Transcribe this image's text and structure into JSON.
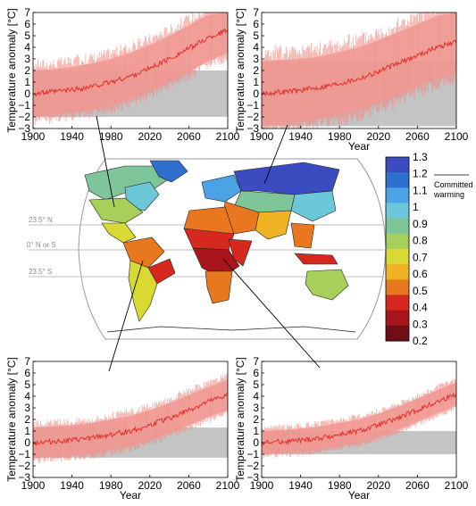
{
  "chart_data": [
    {
      "type": "line",
      "position": "top-left",
      "xlabel": "",
      "ylabel": "Temperature anomaly [°C]",
      "xlim": [
        1900,
        2100
      ],
      "ylim": [
        -3,
        7
      ],
      "x_ticks": [
        "1900",
        "1940",
        "1980",
        "2020",
        "2060",
        "2100"
      ],
      "y_ticks": [
        "−3",
        "−2",
        "−1",
        "0",
        "1",
        "2",
        "3",
        "4",
        "5",
        "6",
        "7"
      ],
      "committed_band": [
        -2.0,
        2.0
      ],
      "x": [
        1900,
        1920,
        1940,
        1960,
        1980,
        2000,
        2020,
        2040,
        2060,
        2080,
        2100
      ],
      "mean": [
        0.0,
        0.15,
        0.35,
        0.6,
        1.0,
        1.5,
        2.2,
        3.0,
        3.9,
        4.8,
        5.5
      ],
      "spread_low": [
        -2.0,
        -1.8,
        -1.6,
        -1.4,
        -1.0,
        -0.5,
        0.2,
        1.0,
        1.9,
        2.8,
        3.5
      ],
      "spread_high": [
        2.0,
        2.1,
        2.3,
        2.6,
        3.0,
        3.5,
        4.2,
        5.0,
        5.9,
        6.8,
        7.0
      ]
    },
    {
      "type": "line",
      "position": "top-right",
      "xlabel": "Year",
      "ylabel": "Temperature anomaly [°C]",
      "xlim": [
        1900,
        2100
      ],
      "ylim": [
        -3,
        7
      ],
      "x_ticks": [
        "1900",
        "1940",
        "1980",
        "2020",
        "2060",
        "2100"
      ],
      "y_ticks": [
        "−3",
        "−2",
        "−1",
        "0",
        "1",
        "2",
        "3",
        "4",
        "5",
        "6",
        "7"
      ],
      "committed_band": [
        -2.8,
        2.8
      ],
      "x": [
        1900,
        1920,
        1940,
        1960,
        1980,
        2000,
        2020,
        2040,
        2060,
        2080,
        2100
      ],
      "mean": [
        0.0,
        0.15,
        0.3,
        0.55,
        0.9,
        1.3,
        1.9,
        2.6,
        3.3,
        4.0,
        4.5
      ],
      "spread_low": [
        -2.8,
        -2.6,
        -2.4,
        -2.1,
        -1.8,
        -1.4,
        -0.8,
        -0.1,
        0.6,
        1.3,
        1.8
      ],
      "spread_high": [
        2.8,
        2.9,
        3.0,
        3.2,
        3.6,
        4.0,
        4.6,
        5.3,
        6.0,
        6.7,
        7.0
      ]
    },
    {
      "type": "line",
      "position": "bottom-left",
      "xlabel": "Year",
      "ylabel": "Temperature anomaly [°C]",
      "xlim": [
        1900,
        2100
      ],
      "ylim": [
        -3,
        7
      ],
      "x_ticks": [
        "1900",
        "1940",
        "1980",
        "2020",
        "2060",
        "2100"
      ],
      "y_ticks": [
        "−3",
        "−2",
        "−1",
        "0",
        "1",
        "2",
        "3",
        "4",
        "5",
        "6",
        "7"
      ],
      "committed_band": [
        -1.3,
        1.3
      ],
      "x": [
        1900,
        1920,
        1940,
        1960,
        1980,
        2000,
        2020,
        2040,
        2060,
        2080,
        2100
      ],
      "mean": [
        0.0,
        0.1,
        0.2,
        0.4,
        0.7,
        1.0,
        1.5,
        2.1,
        2.8,
        3.5,
        4.1
      ],
      "spread_low": [
        -1.3,
        -1.2,
        -1.1,
        -0.9,
        -0.6,
        -0.3,
        0.2,
        0.8,
        1.5,
        2.2,
        2.8
      ],
      "spread_high": [
        1.3,
        1.4,
        1.5,
        1.7,
        2.0,
        2.3,
        2.8,
        3.4,
        4.1,
        4.8,
        5.4
      ]
    },
    {
      "type": "line",
      "position": "bottom-right",
      "xlabel": "Year",
      "ylabel": "Temperature anomaly [°C]",
      "xlim": [
        1900,
        2100
      ],
      "ylim": [
        -3,
        7
      ],
      "x_ticks": [
        "1900",
        "1940",
        "1980",
        "2020",
        "2060",
        "2100"
      ],
      "y_ticks": [
        "−3",
        "−2",
        "−1",
        "0",
        "1",
        "2",
        "3",
        "4",
        "5",
        "6",
        "7"
      ],
      "committed_band": [
        -1.0,
        1.0
      ],
      "x": [
        1900,
        1920,
        1940,
        1960,
        1980,
        2000,
        2020,
        2040,
        2060,
        2080,
        2100
      ],
      "mean": [
        0.0,
        0.1,
        0.2,
        0.4,
        0.7,
        1.0,
        1.5,
        2.1,
        2.8,
        3.5,
        4.2
      ],
      "spread_low": [
        -1.0,
        -0.9,
        -0.8,
        -0.6,
        -0.3,
        0.0,
        0.5,
        1.1,
        1.8,
        2.5,
        3.2
      ],
      "spread_high": [
        1.0,
        1.1,
        1.2,
        1.4,
        1.7,
        2.0,
        2.5,
        3.1,
        3.8,
        4.5,
        5.2
      ]
    },
    {
      "type": "heatmap",
      "position": "center-map",
      "latitude_labels": [
        "23.5° N",
        "0° N or S",
        "23.5° S"
      ],
      "colorbar": {
        "ticks": [
          "1.3",
          "1.2",
          "1.1",
          "1",
          "0.9",
          "0.8",
          "0.7",
          "0.6",
          "0.5",
          "0.4",
          "0.3",
          "0.2"
        ],
        "range": [
          0.2,
          1.3
        ],
        "label": "Committed warming",
        "label_lines": [
          "Committed",
          "warming"
        ],
        "colors": [
          "#3b4cc0",
          "#2f6fd0",
          "#4ba3e6",
          "#6cc7d8",
          "#7fc59a",
          "#a7cf5a",
          "#d8da33",
          "#f0b323",
          "#e8771f",
          "#d6281e",
          "#a8161b",
          "#6e0f16"
        ]
      }
    }
  ],
  "colors": {
    "spread": "#f4a8a3",
    "spread_dense": "#ee8b86",
    "mean": "#e0322a",
    "committed": "#c4c4c4",
    "map_outline": "#000000"
  }
}
